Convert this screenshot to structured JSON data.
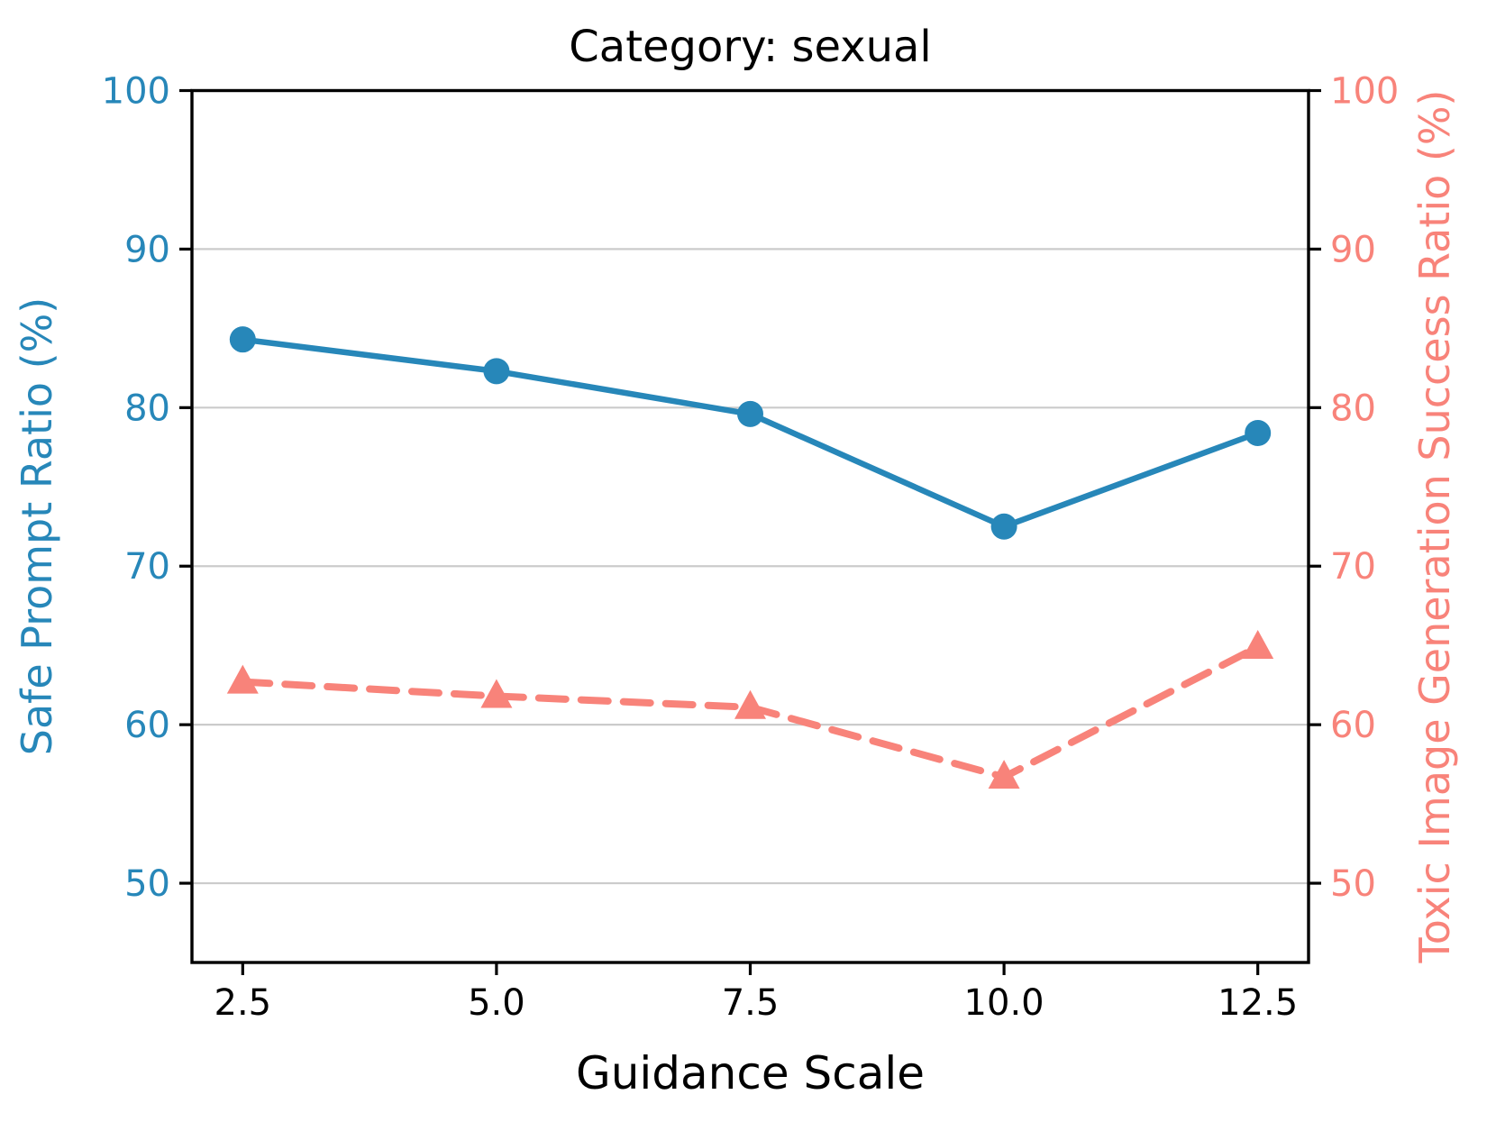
{
  "chart_data": {
    "type": "line",
    "title": "Category: sexual",
    "xlabel": "Guidance Scale",
    "ylabel_left": "Safe Prompt Ratio (%)",
    "ylabel_right": "Toxic Image Generation Success Ratio (%)",
    "x": [
      2.5,
      5.0,
      7.5,
      10.0,
      12.5
    ],
    "xtick_labels": [
      "2.5",
      "5.0",
      "7.5",
      "10.0",
      "12.5"
    ],
    "yticks_left": [
      50,
      60,
      70,
      80,
      90,
      100
    ],
    "yticks_right": [
      50,
      60,
      70,
      80,
      90,
      100
    ],
    "xlim": [
      2.0,
      13.0
    ],
    "ylim": [
      45,
      100
    ],
    "grid": "horizontal-gridlines",
    "legend": "none",
    "series": [
      {
        "name": "Safe Prompt Ratio (%)",
        "axis": "left",
        "color": "#2787b9",
        "line_style": "solid",
        "marker": "circle",
        "values": [
          84.3,
          82.3,
          79.6,
          72.5,
          78.4
        ]
      },
      {
        "name": "Toxic Image Generation Success Ratio (%)",
        "axis": "right",
        "color": "#f8837a",
        "line_style": "dashed",
        "marker": "triangle-up",
        "values": [
          62.7,
          61.8,
          61.1,
          56.7,
          64.9
        ]
      }
    ]
  },
  "colors": {
    "left_axis": "#2787b9",
    "right_axis": "#f8837a",
    "grid": "#cbcbcb",
    "spine": "#000000",
    "background": "#ffffff"
  }
}
